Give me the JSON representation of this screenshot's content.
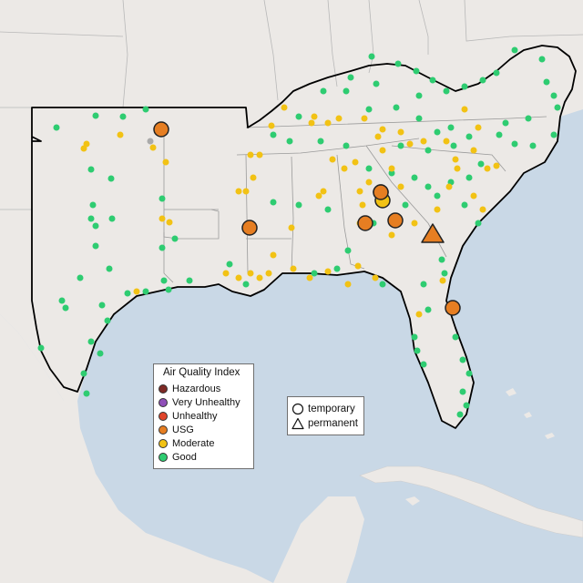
{
  "legend": {
    "title": "Air Quality Index",
    "categories": [
      {
        "label": "Hazardous",
        "color": "#7e2a25"
      },
      {
        "label": "Very Unhealthy",
        "color": "#8f4fb8"
      },
      {
        "label": "Unhealthy",
        "color": "#e0452b"
      },
      {
        "label": "USG",
        "color": "#e67e22"
      },
      {
        "label": "Moderate",
        "color": "#f2c214"
      },
      {
        "label": "Good",
        "color": "#2ecc71"
      }
    ]
  },
  "monitor_types": {
    "temporary": "temporary",
    "permanent": "permanent"
  },
  "colors": {
    "water": "#c9d8e6",
    "land": "#ece9e6",
    "region_outline": "#000000"
  }
}
